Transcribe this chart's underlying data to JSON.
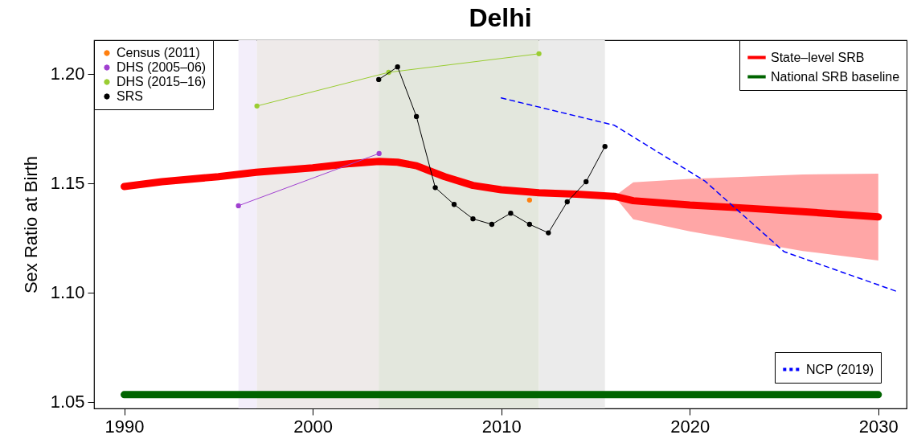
{
  "chart_data": {
    "type": "line",
    "title": "Delhi",
    "ylabel": "Sex Ratio at Birth",
    "xlim": [
      1988.4,
      2031.5
    ],
    "ylim": [
      1.047,
      1.2154
    ],
    "xticks": [
      1990,
      2000,
      2010,
      2020,
      2030
    ],
    "yticks": [
      1.05,
      {
        "value": 1.1,
        "label": "1.10"
      },
      1.15,
      {
        "value": 1.2,
        "label": "1.20"
      }
    ],
    "grid": false,
    "legend": "top left",
    "bands": [
      {
        "axis": "x",
        "from": 1996.06,
        "to": 1997.04,
        "color": "#f3eefa"
      },
      {
        "axis": "x",
        "from": 1997.04,
        "to": 2003.5,
        "color": "#eeeae9"
      },
      {
        "axis": "x",
        "from": 2003.5,
        "to": 2012.0,
        "color": "#e3e7dd"
      },
      {
        "axis": "x",
        "from": 2012.0,
        "to": 2015.5,
        "color": "#ebebeb"
      }
    ],
    "series": [
      {
        "name": "Census (2011)",
        "color": "#ff7f0e",
        "marker": "circle",
        "x": [
          2011.5
        ],
        "values": [
          1.1423
        ]
      },
      {
        "name": "DHS (2005–06)",
        "color": "#a040d0",
        "marker": "circle",
        "x": [
          1996.06,
          2003.52
        ],
        "values": [
          1.1397,
          1.1636
        ]
      },
      {
        "name": "DHS (2015–16)",
        "color": "#9acd32",
        "marker": "circle",
        "x": [
          1997.04,
          2004.03,
          2012.0
        ],
        "values": [
          1.1853,
          1.2007,
          1.2092
        ]
      },
      {
        "name": "SRS",
        "color": "#000000",
        "marker": "circle",
        "x": [
          2003.5,
          2004.5,
          2005.5,
          2006.5,
          2007.5,
          2008.5,
          2009.5,
          2010.5,
          2011.5,
          2012.5,
          2013.5,
          2014.5,
          2015.5
        ],
        "values": [
          1.1974,
          1.2032,
          1.1805,
          1.148,
          1.1403,
          1.1337,
          1.1312,
          1.1363,
          1.1312,
          1.1273,
          1.1415,
          1.1507,
          1.1668
        ]
      },
      {
        "name": "State–level SRB",
        "color": "#ff0000",
        "marker": "none",
        "x": [
          1990,
          1992,
          1995,
          1997,
          2000,
          2002,
          2003.5,
          2004.5,
          2005.5,
          2007,
          2008.5,
          2010,
          2012,
          2014,
          2016,
          2017,
          2020,
          2023,
          2026,
          2030
        ],
        "values": [
          1.1485,
          1.1507,
          1.153,
          1.155,
          1.157,
          1.159,
          1.16,
          1.1596,
          1.158,
          1.153,
          1.149,
          1.147,
          1.1456,
          1.145,
          1.144,
          1.142,
          1.14,
          1.1386,
          1.137,
          1.1346
        ],
        "lower": [
          null,
          null,
          null,
          null,
          null,
          null,
          null,
          null,
          null,
          null,
          null,
          null,
          null,
          null,
          1.144,
          1.1335,
          1.128,
          1.1235,
          1.119,
          1.1147
        ],
        "upper": [
          null,
          null,
          null,
          null,
          null,
          null,
          null,
          null,
          null,
          null,
          null,
          null,
          null,
          null,
          1.144,
          1.1504,
          1.152,
          1.153,
          1.154,
          1.1544
        ]
      },
      {
        "name": "National SRB baseline",
        "color": "#006400",
        "marker": "none",
        "x": [
          1990,
          2030
        ],
        "values": [
          1.0533,
          1.0533
        ]
      },
      {
        "name": "NCP (2019)",
        "color": "#0000ff",
        "marker": "none",
        "line_style": "dashed",
        "x": [
          2010,
          2016,
          2020.8,
          2025,
          2031.05
        ],
        "values": [
          1.189,
          1.1765,
          1.151,
          1.1187,
          1.1003
        ]
      }
    ]
  }
}
